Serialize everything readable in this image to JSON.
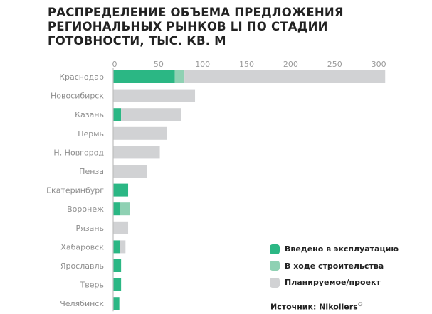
{
  "chart_data": {
    "type": "bar",
    "orientation": "horizontal",
    "stacked": true,
    "title": "РАСПРЕДЕЛЕНИЕ ОБЪЕМА ПРЕДЛОЖЕНИЯ\nРЕГИОНАЛЬНЫХ РЫНКОВ LI ПО СТАДИИ\nГОТОВНОСТИ, ТЫС. КВ. М",
    "xlim": [
      0,
      310
    ],
    "xticks": [
      0,
      50,
      100,
      150,
      200,
      250,
      300
    ],
    "xtick_position": "top",
    "categories": [
      "Краснодар",
      "Новосибирск",
      "Казань",
      "Пермь",
      "Н. Новгород",
      "Пенза",
      "Екатеринбург",
      "Воронеж",
      "Рязань",
      "Хабаровск",
      "Ярославль",
      "Тверь",
      "Челябинск"
    ],
    "series": [
      {
        "name": "Введено в эксплуатацию",
        "color": "#2bb784",
        "values": [
          70,
          0,
          9,
          0,
          0,
          0,
          17,
          8,
          0,
          8,
          9,
          9,
          7
        ]
      },
      {
        "name": "В ходе строительства",
        "color": "#8fd1b3",
        "values": [
          11,
          0,
          0,
          0,
          0,
          0,
          0,
          11,
          0,
          0,
          0,
          0,
          0
        ]
      },
      {
        "name": "Планируемое/проект",
        "color": "#d1d2d4",
        "values": [
          228,
          93,
          68,
          61,
          53,
          38,
          0,
          0,
          17,
          6,
          0,
          0,
          0
        ]
      }
    ],
    "legend_position": "bottom-right",
    "grid": false
  },
  "source": {
    "label": "Источник: Nikoliers",
    "mark": "✪"
  }
}
